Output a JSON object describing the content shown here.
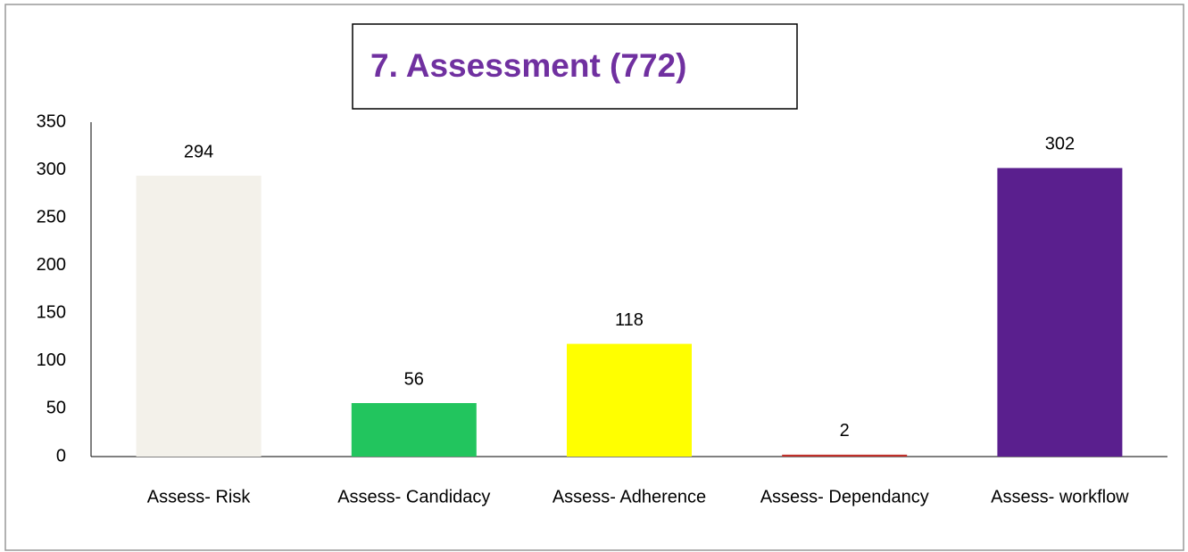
{
  "chart_data": {
    "type": "bar",
    "title": "7. Assessment (772)",
    "categories": [
      "Assess- Risk",
      "Assess- Candidacy",
      "Assess- Adherence",
      "Assess- Dependancy",
      "Assess- workflow"
    ],
    "values": [
      294,
      56,
      118,
      2,
      302
    ],
    "colors": [
      "#f3f1ea",
      "#22c55e",
      "#ffff00",
      "#c0302a",
      "#5a1f8e"
    ],
    "ylim": [
      0,
      350
    ],
    "yticks": [
      0,
      50,
      100,
      150,
      200,
      250,
      300,
      350
    ],
    "grid": false
  }
}
